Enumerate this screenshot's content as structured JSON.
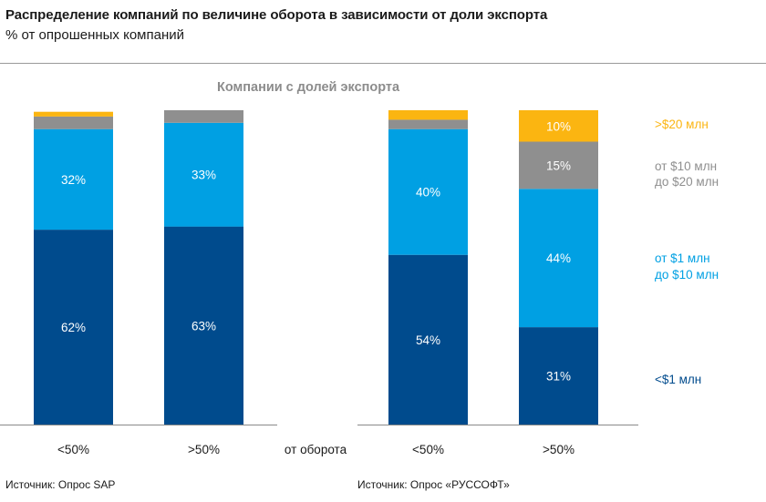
{
  "header": {
    "title": "Распределение компаний по величине оборота в зависимости от доли экспорта",
    "subtitle": "% от опрошенных компаний"
  },
  "subheading": "Компании с долей экспорта",
  "middle_label": "от оборота",
  "sources": {
    "left": "Источник: Опрос SAP",
    "right": "Источник: Опрос «РУССОФТ»"
  },
  "colors": {
    "under_1m": "#004b8d",
    "1m_10m": "#00a0e3",
    "10m_20m": "#8f8f8f",
    "over_20m": "#fbb511"
  },
  "chart_data": [
    {
      "type": "bar",
      "stacked": true,
      "source": "Опрос SAP",
      "categories": [
        "<50%",
        ">50%"
      ],
      "series": [
        {
          "name": "<$1 млн",
          "values": [
            62,
            63
          ],
          "labels": [
            "62%",
            "63%"
          ]
        },
        {
          "name": "от $1 млн до $10 млн",
          "values": [
            32,
            33
          ],
          "labels": [
            "32%",
            "33%"
          ]
        },
        {
          "name": "от $10 млн до $20 млн",
          "values": [
            4,
            4
          ],
          "labels": [
            "",
            ""
          ]
        },
        {
          "name": ">$20 млн",
          "values": [
            1.5,
            0
          ],
          "labels": [
            "",
            ""
          ]
        }
      ],
      "ylim": [
        0,
        100
      ]
    },
    {
      "type": "bar",
      "stacked": true,
      "source": "Опрос «РУССОФТ»",
      "categories": [
        "<50%",
        ">50%"
      ],
      "series": [
        {
          "name": "<$1 млн",
          "values": [
            54,
            31
          ],
          "labels": [
            "54%",
            "31%"
          ]
        },
        {
          "name": "от $1 млн до $10 млн",
          "values": [
            40,
            44
          ],
          "labels": [
            "40%",
            "44%"
          ]
        },
        {
          "name": "от $10 млн до $20 млн",
          "values": [
            3,
            15
          ],
          "labels": [
            "",
            "15%"
          ]
        },
        {
          "name": ">$20 млн",
          "values": [
            3,
            10
          ],
          "labels": [
            "",
            "10%"
          ]
        }
      ],
      "ylim": [
        0,
        100
      ]
    }
  ],
  "legend": [
    {
      "lines": [
        ">$20 млн"
      ],
      "color": "#fbb511"
    },
    {
      "lines": [
        "от $10 млн",
        "до $20 млн"
      ],
      "color": "#8f8f8f"
    },
    {
      "lines": [
        "от $1 млн",
        "до $10 млн"
      ],
      "color": "#00a0e3"
    },
    {
      "lines": [
        "<$1 млн"
      ],
      "color": "#004b8d"
    }
  ]
}
